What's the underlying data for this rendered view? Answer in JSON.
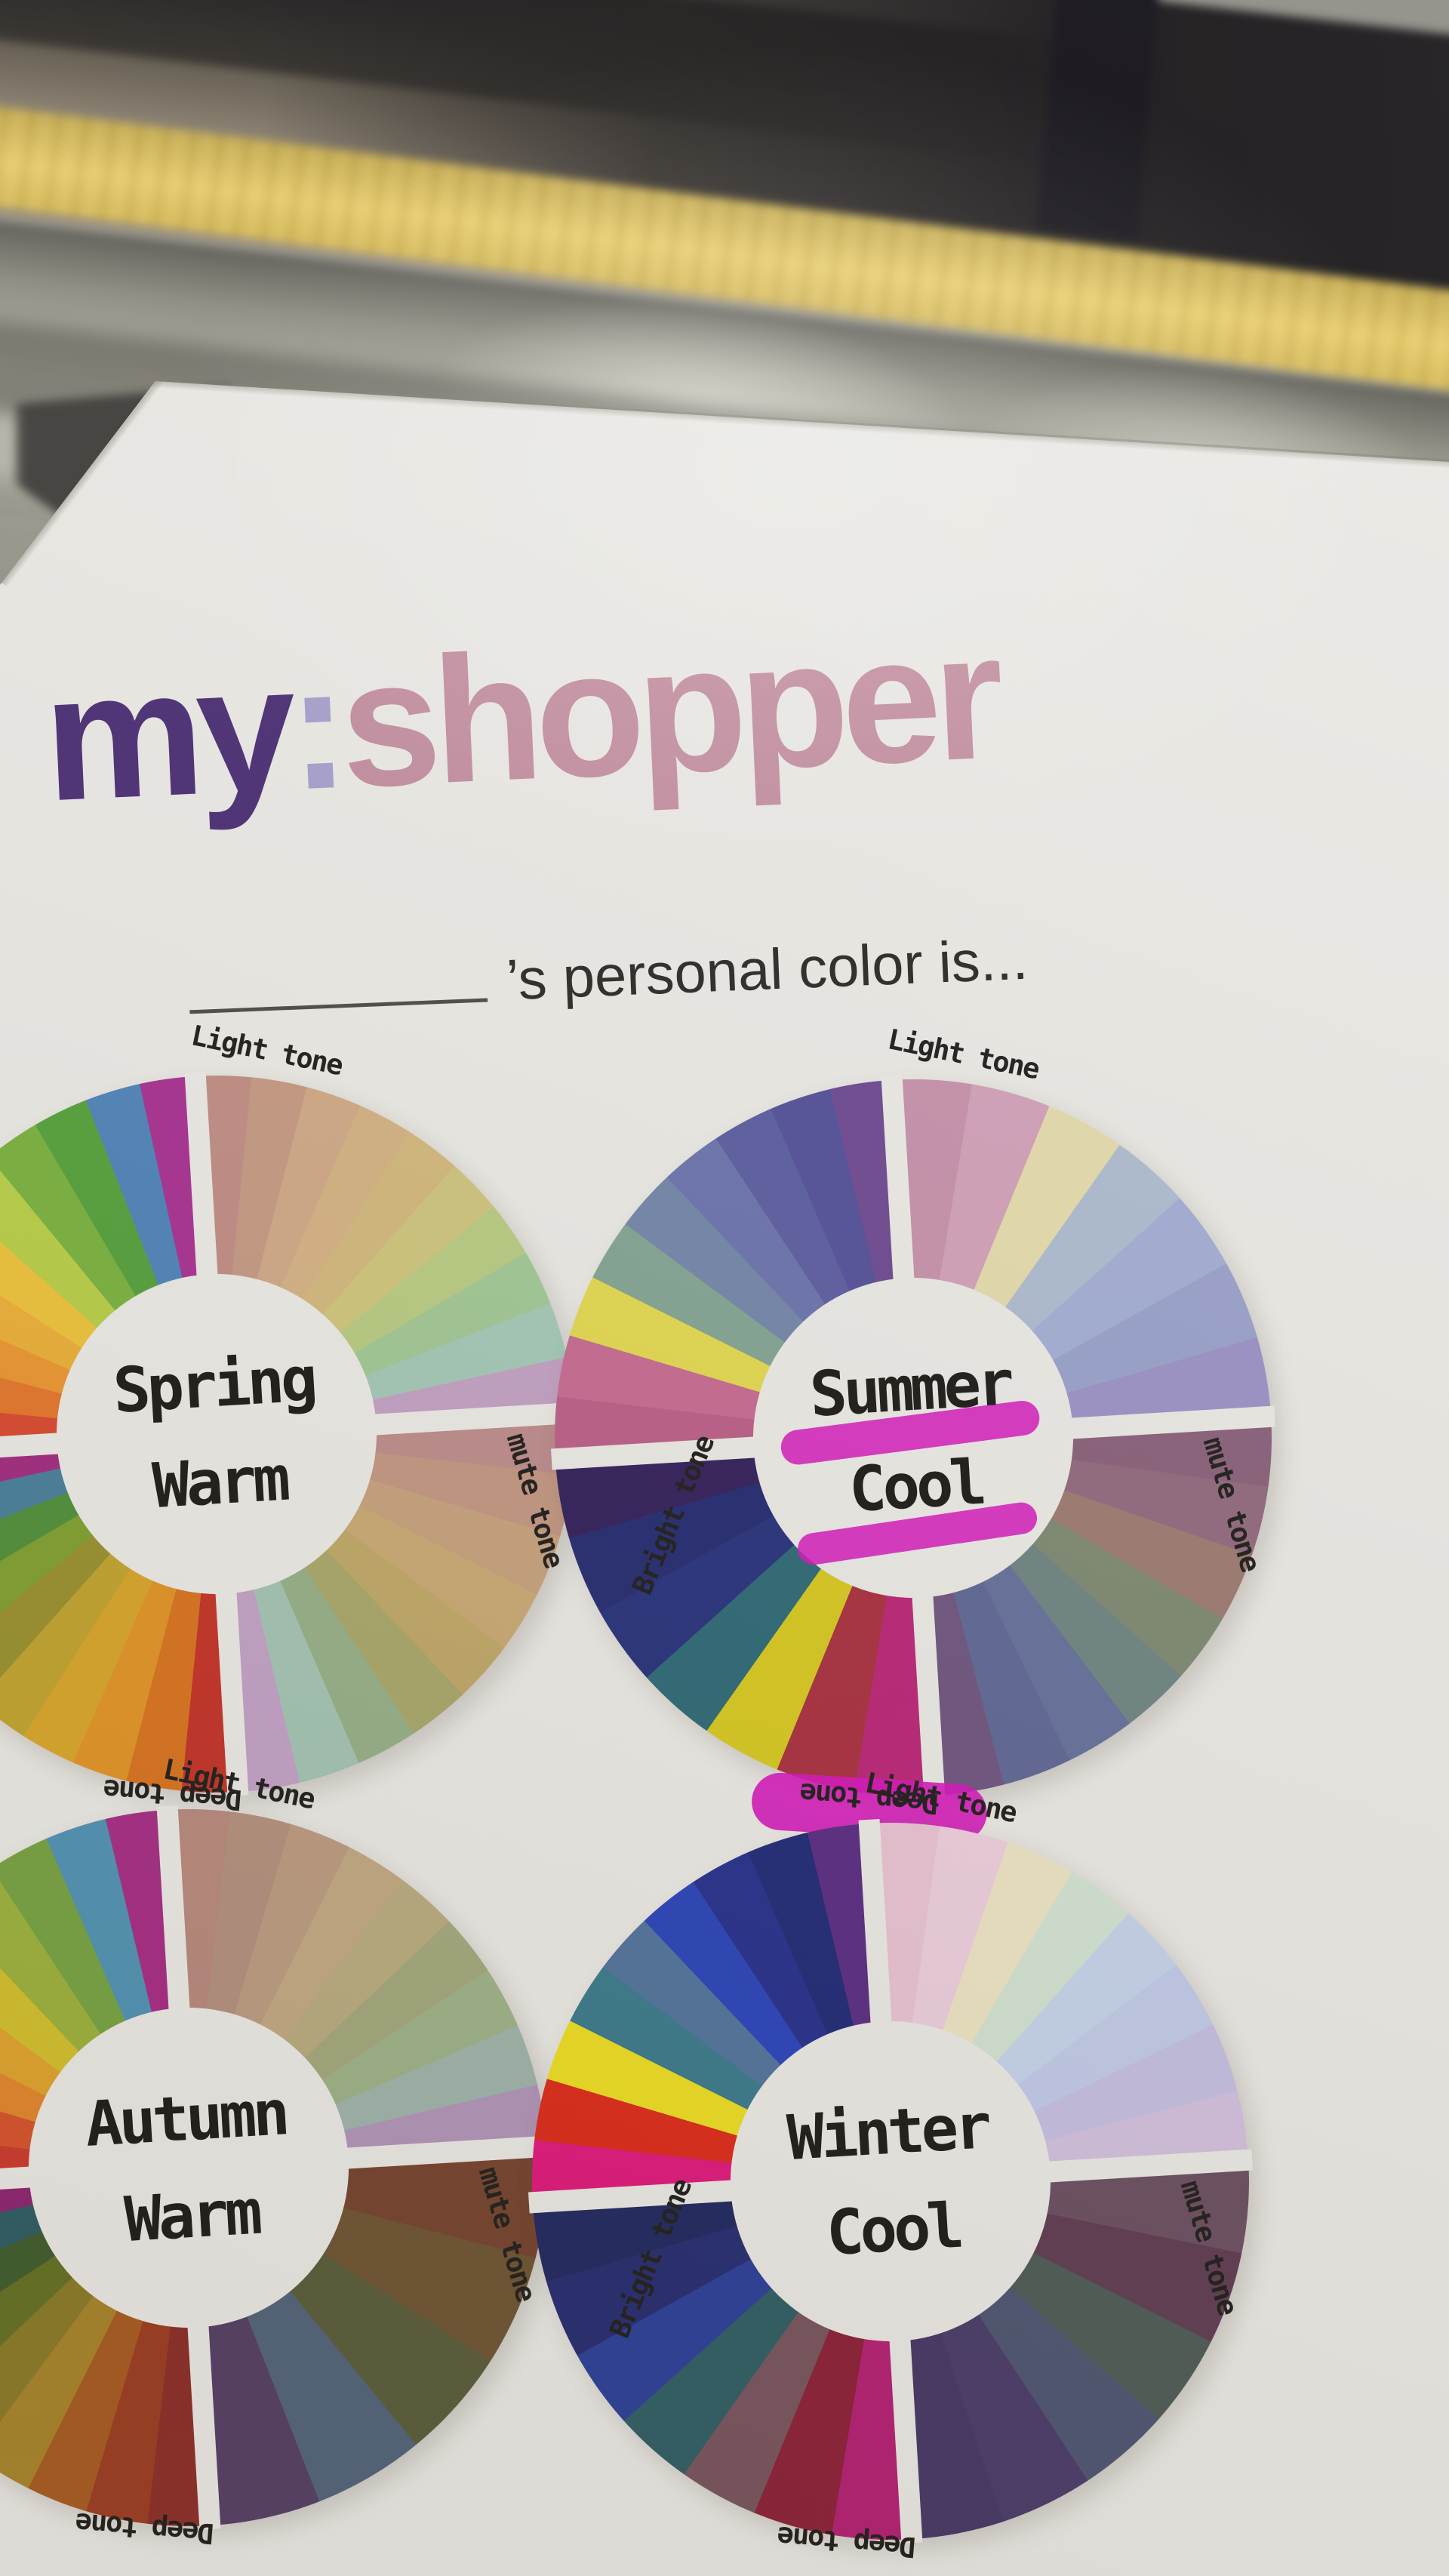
{
  "scene": {
    "setting": "blurred subway platform with yellow tactile paving strip behind a white printed card",
    "card_title": {
      "part1": "my",
      "colon": ":",
      "part2": "shopper"
    },
    "subtitle_text": "’s personal color is...",
    "tone_labels": {
      "light": "Light tone",
      "mute": "mute tone",
      "deep": "Deep tone",
      "bright": "Bright tone"
    },
    "palette": {
      "card": "#ecebe7",
      "title_part1": "#4b2f76",
      "title_colon": "#a7a2cf",
      "title_part2": "#c48fa2",
      "subtitle_color": "#2b2a28",
      "label_color": "#1f1e1c",
      "hub_text": "#1c1b19",
      "marker": "#d616bd",
      "tactile_yellow": "#e9cb62",
      "platform_gray": "#aeaea2",
      "dark_wall": "#1d1b1e"
    }
  },
  "wheels": [
    {
      "id": "spring",
      "name_line1": "Spring",
      "name_line2": "Warm",
      "highlighted": false,
      "quadrants": {
        "light": [
          "#c18e86",
          "#c69a84",
          "#d0aa88",
          "#d4b384",
          "#d3b97e",
          "#cfc67e",
          "#b9cc84",
          "#a2c996",
          "#a4c9b8",
          "#c3a1c5"
        ],
        "mute": [
          "#bd8c8c",
          "#c29782",
          "#c7a27e",
          "#c9aa74",
          "#bfa868",
          "#a8a86a",
          "#96b088",
          "#a3c4b4",
          "#c3a2c8"
        ],
        "deep": [
          "#c53227",
          "#d9731f",
          "#e29426",
          "#d9a62a",
          "#c2a42f",
          "#99912e",
          "#7fa031",
          "#4e8f39",
          "#47809b",
          "#a12b80"
        ],
        "bright": [
          "#d84a30",
          "#e4762c",
          "#eb9631",
          "#ecb037",
          "#eec33b",
          "#b8cf48",
          "#79b33f",
          "#54a23c",
          "#4e84ba",
          "#a83193"
        ]
      }
    },
    {
      "id": "summer",
      "name_line1": "Summer",
      "name_line2": "Cool",
      "highlighted": true,
      "quadrants": {
        "light": [
          "#c793ad",
          "#d3a2bb",
          "#e5dcae",
          "#aebdd1",
          "#a4afd6",
          "#9aa2cc",
          "#9c93c8"
        ],
        "mute": [
          "#8a617c",
          "#916a7f",
          "#9d7b72",
          "#7e8a74",
          "#6f8584",
          "#66719d",
          "#5f6896",
          "#6f5580"
        ],
        "deep": [
          "#bc2578",
          "#a93040",
          "#d7c921",
          "#2d6a77",
          "#28327e",
          "#242c72",
          "#32205c"
        ],
        "bright": [
          "#bd5f8a",
          "#c76b92",
          "#e3d952",
          "#84a595",
          "#7386ab",
          "#6b74ae",
          "#5c5ea2",
          "#53519b",
          "#6e4a93"
        ]
      }
    },
    {
      "id": "autumn",
      "name_line1": "Autumn",
      "name_line2": "Warm",
      "highlighted": false,
      "quadrants": {
        "light": [
          "#b9897e",
          "#b4907f",
          "#bc9c82",
          "#c2a984",
          "#b9ab80",
          "#a4a87c",
          "#9db388",
          "#9fb4ac",
          "#b295ba"
        ],
        "mute": [
          "#75432e",
          "#6d5434",
          "#585c3a",
          "#50647a",
          "#543e66"
        ],
        "deep": [
          "#8c2c28",
          "#9c3c20",
          "#a85a20",
          "#a8842a",
          "#8a7a28",
          "#647024",
          "#3e5c2c",
          "#2c5c64",
          "#8c2472"
        ],
        "bright": [
          "#cc3a2c",
          "#d8522c",
          "#e2862c",
          "#e0a42c",
          "#d3c02c",
          "#9cb23c",
          "#76a342",
          "#4f93b5",
          "#a62c85"
        ]
      }
    },
    {
      "id": "winter",
      "name_line1": "Winter",
      "name_line2": "Cool",
      "highlighted": false,
      "quadrants": {
        "light": [
          "#eac4d6",
          "#eecfe0",
          "#ede5c4",
          "#d3e4d4",
          "#c6d4ec",
          "#c2cbea",
          "#c6c0e4",
          "#d4c2e0"
        ],
        "mute": [
          "#6b4e62",
          "#5f3c54",
          "#4e5b58",
          "#4d5573",
          "#493c6a",
          "#453766"
        ],
        "deep": [
          "#b51e74",
          "#8c2038",
          "#77555e",
          "#2f5e66",
          "#2b3f9a",
          "#252c72",
          "#1f2760"
        ],
        "bright": [
          "#e0187c",
          "#de2a1a",
          "#eede22",
          "#3a7a8c",
          "#52739e",
          "#2a44bc",
          "#26308e",
          "#202a78",
          "#5a2c84"
        ]
      }
    }
  ]
}
